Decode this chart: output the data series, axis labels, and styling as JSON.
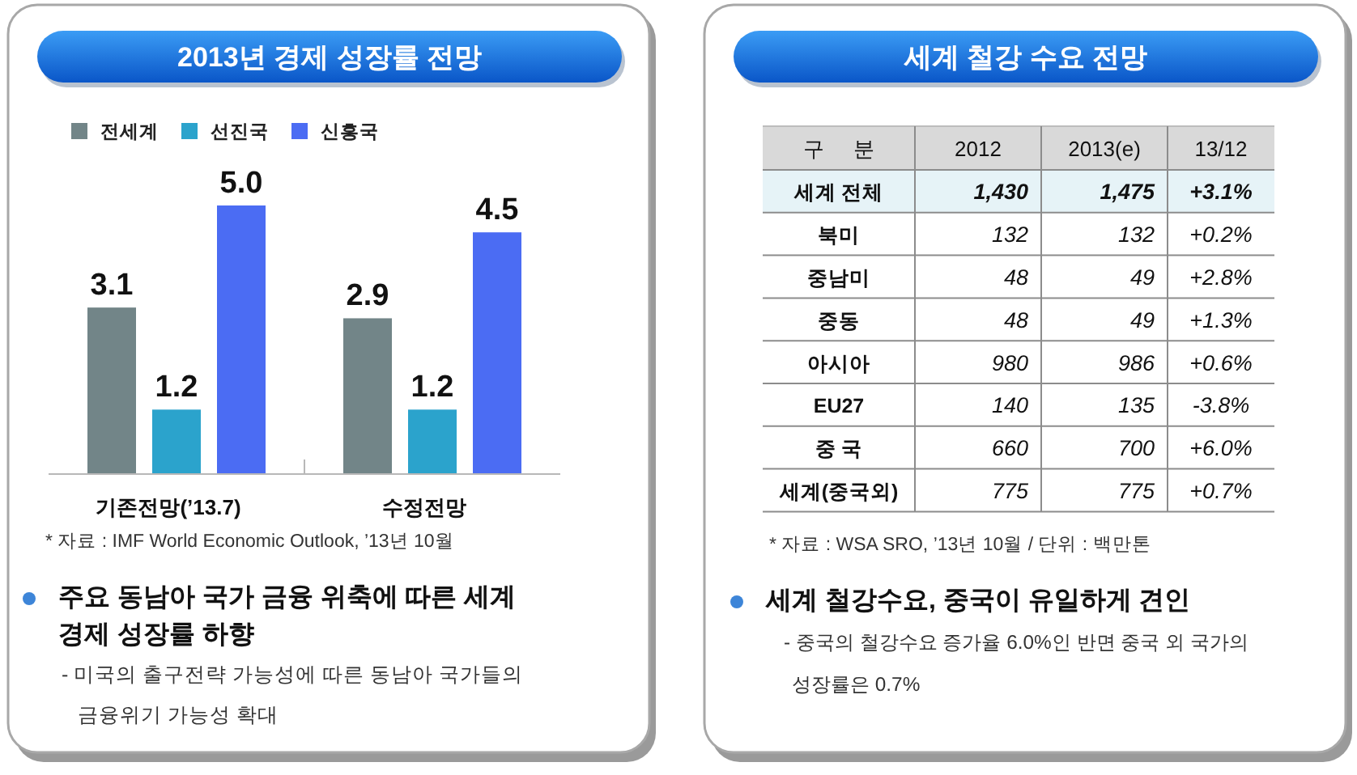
{
  "chart_data": [
    {
      "type": "bar",
      "title": "2013년 경제 성장률 전망",
      "categories": [
        "기존전망(’13.7)",
        "수정전망"
      ],
      "series": [
        {
          "name": "전세계",
          "color": "#728588",
          "values": [
            3.1,
            2.9
          ],
          "value_labels": [
            "3.1",
            "2.9"
          ]
        },
        {
          "name": "선진국",
          "color": "#2ba3cc",
          "values": [
            1.2,
            1.2
          ],
          "value_labels": [
            "1.2",
            "1.2"
          ]
        },
        {
          "name": "신흥국",
          "color": "#4b6cf3",
          "values": [
            5.0,
            4.5
          ],
          "value_labels": [
            "5.0",
            "4.5"
          ]
        }
      ],
      "legend": "top left",
      "annotations": [
        "* 자료 : IMF World Economic Outlook, ’13년 10월",
        "주요 동남아 국가 금융 위축에 따른 세계 경제 성장률 하향",
        "- 미국의 출구전략 가능성에 따른 동남아 국가들의 금융위기 가능성 확대"
      ]
    },
    {
      "type": "other",
      "title": "세계 철강 수요 전망",
      "ylabel": "구 분",
      "categories": [
        "2012",
        "2013(e)",
        "13/12"
      ],
      "y_categories": [
        "세계 전체",
        "북미",
        "중남미",
        "중동",
        "아시아",
        "EU27",
        "중 국",
        "세계(중국외)"
      ],
      "cell_labels": [
        [
          "1,430",
          "1,475",
          "+3.1%"
        ],
        [
          "132",
          "132",
          "+0.2%"
        ],
        [
          "48",
          "49",
          "+2.8%"
        ],
        [
          "48",
          "49",
          "+1.3%"
        ],
        [
          "980",
          "986",
          "+0.6%"
        ],
        [
          "140",
          "135",
          "-3.8%"
        ],
        [
          "660",
          "700",
          "+6.0%"
        ],
        [
          "775",
          "775",
          "+0.7%"
        ]
      ],
      "annotations": [
        "* 자료 : WSA SRO, ’13년 10월 / 단위 : 백만톤",
        "세계 철강수요, 중국이 유일하게 견인",
        "- 중국의 철강수요 증가율 6.0%인 반면 중국 외 국가의 성장률은 0.7%"
      ]
    }
  ]
}
